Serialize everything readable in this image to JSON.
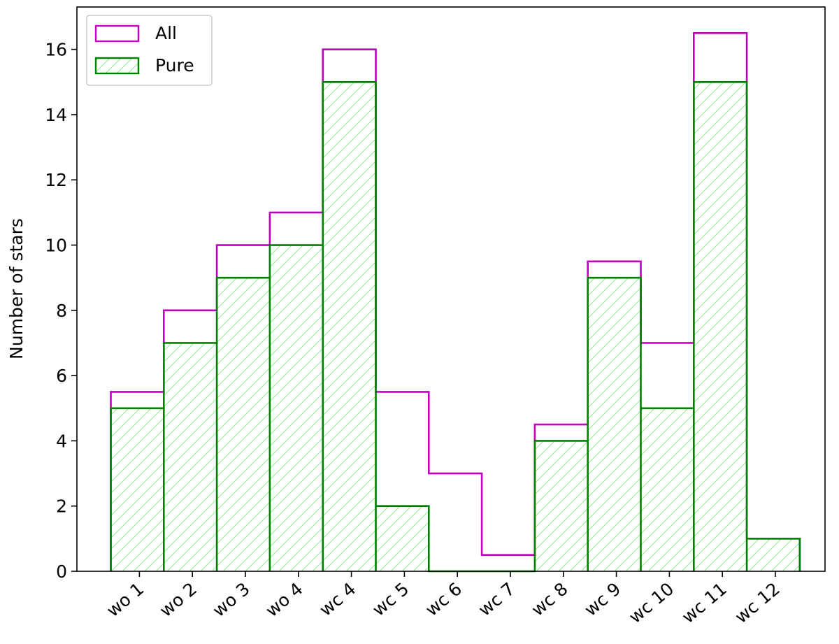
{
  "chart_data": {
    "type": "bar",
    "categories": [
      "wo 1",
      "wo 2",
      "wo 3",
      "wo 4",
      "wc 4",
      "wc 5",
      "wc 6",
      "wc 7",
      "wc 8",
      "wc 9",
      "wc 10",
      "wc 11",
      "wc 12"
    ],
    "series": [
      {
        "name": "All",
        "values": [
          5.5,
          8,
          10,
          11,
          16,
          5.5,
          3,
          0.5,
          4.5,
          9.5,
          7,
          16.5,
          1
        ],
        "color": "#bf00bf",
        "hatch": false
      },
      {
        "name": "Pure",
        "values": [
          5,
          7,
          9,
          10,
          15,
          2,
          0,
          0,
          4,
          9,
          5,
          15,
          1
        ],
        "color": "#008000",
        "hatch": true,
        "hatch_color": "#90ee90"
      }
    ],
    "ylabel": "Number of stars",
    "xlabel": "",
    "title": "",
    "ylim": [
      0,
      17.3
    ],
    "yticks": [
      0,
      2,
      4,
      6,
      8,
      10,
      12,
      14,
      16
    ],
    "grid": false,
    "legend": "top-left",
    "xtick_rotation": 40
  }
}
